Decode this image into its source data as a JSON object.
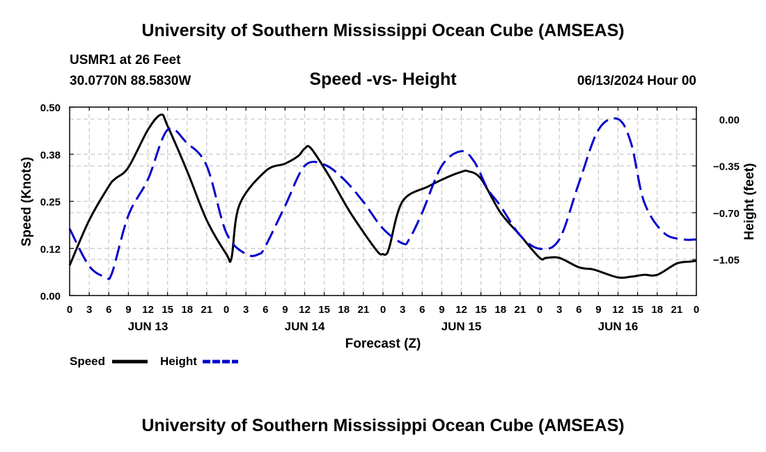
{
  "header": {
    "title": "University of Southern Mississippi Ocean Cube (AMSEAS)",
    "station": "USMR1 at 26 Feet",
    "coords": "30.0770N  88.5830W",
    "subtitle": "Speed -vs- Height",
    "datetime": "06/13/2024 Hour 00"
  },
  "footer": {
    "title": "University of Southern Mississippi Ocean Cube (AMSEAS)"
  },
  "chart_data": {
    "type": "line",
    "xlabel": "Forecast (Z)",
    "ylabel": "Speed (Knots)",
    "y2label": "Height (feet)",
    "xlim": [
      0,
      96
    ],
    "ylim": [
      0,
      0.5
    ],
    "y2lim": [
      -1.32,
      0.09
    ],
    "x_tick_labels": [
      "0",
      "3",
      "6",
      "9",
      "12",
      "15",
      "18",
      "21",
      "0",
      "3",
      "6",
      "9",
      "12",
      "15",
      "18",
      "21",
      "0",
      "3",
      "6",
      "9",
      "12",
      "15",
      "18",
      "21",
      "0",
      "3",
      "6",
      "9",
      "12",
      "15",
      "18",
      "21",
      "0"
    ],
    "y_ticks": [
      0.0,
      0.125,
      0.25,
      0.375,
      0.5
    ],
    "y_tick_labels": [
      "0.00",
      "0.12",
      "0.25",
      "0.38",
      "0.50"
    ],
    "y2_ticks": [
      0.0,
      -0.35,
      -0.7,
      -1.05
    ],
    "y2_tick_labels": [
      "0.00",
      "−0.35",
      "−0.70",
      "−1.05"
    ],
    "day_labels": [
      {
        "label": "JUN 13",
        "hour": 12
      },
      {
        "label": "JUN 14",
        "hour": 36
      },
      {
        "label": "JUN 15",
        "hour": 60
      },
      {
        "label": "JUN 16",
        "hour": 84
      }
    ],
    "grid": true,
    "legend_position": "bottom-left",
    "series": [
      {
        "name": "Speed",
        "axis": "left",
        "color": "#000000",
        "dash": "solid",
        "x": [
          0,
          3,
          6,
          7,
          9,
          12,
          14,
          15,
          18,
          21,
          24,
          24.8,
          26,
          30,
          33,
          35,
          36,
          37,
          40,
          43,
          47,
          48,
          48.5,
          49,
          51,
          55,
          58,
          60,
          61,
          63,
          66,
          69,
          72,
          73,
          75,
          78,
          80,
          81,
          84,
          86,
          88,
          90,
          93,
          95,
          96
        ],
        "values": [
          0.08,
          0.2,
          0.29,
          0.31,
          0.34,
          0.44,
          0.48,
          0.45,
          0.33,
          0.2,
          0.11,
          0.1,
          0.24,
          0.33,
          0.35,
          0.37,
          0.39,
          0.39,
          0.31,
          0.22,
          0.12,
          0.11,
          0.11,
          0.13,
          0.25,
          0.29,
          0.315,
          0.328,
          0.33,
          0.31,
          0.22,
          0.16,
          0.1,
          0.1,
          0.1,
          0.075,
          0.07,
          0.065,
          0.048,
          0.05,
          0.055,
          0.055,
          0.085,
          0.09,
          0.092
        ]
      },
      {
        "name": "Height",
        "axis": "right",
        "color": "#0000cc",
        "dash": "dashed",
        "x": [
          0,
          3,
          5.5,
          6.5,
          9,
          12,
          15,
          18,
          21,
          24,
          27,
          29,
          30,
          33,
          36,
          39,
          42,
          45,
          48,
          51,
          52,
          54,
          57,
          60,
          62,
          64,
          66,
          69,
          72,
          75,
          78,
          81,
          84,
          86,
          88,
          91,
          94,
          96
        ],
        "values": [
          -0.82,
          -1.1,
          -1.18,
          -1.15,
          -0.72,
          -0.45,
          -0.08,
          -0.18,
          -0.35,
          -0.85,
          -1.01,
          -1.01,
          -0.95,
          -0.65,
          -0.35,
          -0.34,
          -0.45,
          -0.62,
          -0.82,
          -0.93,
          -0.9,
          -0.7,
          -0.35,
          -0.24,
          -0.32,
          -0.52,
          -0.65,
          -0.87,
          -0.97,
          -0.9,
          -0.48,
          -0.08,
          0.0,
          -0.18,
          -0.62,
          -0.85,
          -0.9,
          -0.9
        ]
      }
    ]
  }
}
